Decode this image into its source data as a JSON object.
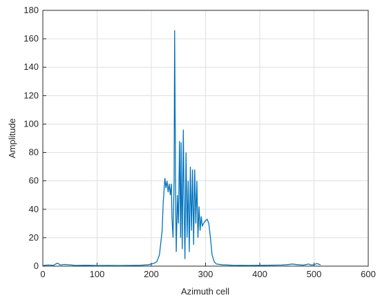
{
  "chart_data": {
    "type": "line",
    "xlabel": "Azimuth cell",
    "ylabel": "Amplitude",
    "xlim": [
      0,
      600
    ],
    "ylim": [
      0,
      180
    ],
    "xticks": [
      0,
      100,
      200,
      300,
      400,
      500,
      600
    ],
    "yticks": [
      0,
      20,
      40,
      60,
      80,
      100,
      120,
      140,
      160,
      180
    ],
    "grid": true,
    "series": [
      {
        "color": "#0072bd",
        "x": [
          1,
          10,
          20,
          25,
          28,
          32,
          40,
          50,
          60,
          80,
          100,
          120,
          140,
          160,
          180,
          195,
          205,
          210,
          215,
          220,
          222,
          225,
          227,
          229,
          231,
          233,
          235,
          237,
          238,
          240,
          242,
          243,
          245,
          246,
          248,
          250,
          252,
          254,
          255,
          257,
          259,
          261,
          262,
          264,
          266,
          268,
          270,
          272,
          274,
          276,
          278,
          280,
          282,
          284,
          286,
          288,
          290,
          292,
          294,
          296,
          300,
          303,
          306,
          309,
          312,
          316,
          320,
          330,
          350,
          380,
          410,
          440,
          450,
          460,
          470,
          480,
          490,
          495,
          500,
          505,
          512
        ],
        "values": [
          0.5,
          0.8,
          0.6,
          1.8,
          2,
          0.8,
          1.2,
          0.9,
          0.5,
          0.6,
          0.4,
          0.5,
          0.4,
          0.5,
          0.6,
          1,
          2,
          3,
          8,
          25,
          45,
          62,
          55,
          60,
          52,
          58,
          50,
          58,
          35,
          20,
          60,
          166,
          40,
          10,
          50,
          30,
          88,
          20,
          87,
          12,
          96,
          30,
          5,
          80,
          20,
          60,
          10,
          70,
          25,
          68,
          15,
          68,
          30,
          60,
          20,
          42,
          25,
          35,
          28,
          30,
          32,
          33,
          30,
          20,
          8,
          3,
          1.5,
          1,
          0.6,
          0.5,
          0.6,
          0.8,
          1,
          1.5,
          1,
          0.7,
          1.5,
          0.8,
          1,
          1.8,
          1
        ]
      }
    ]
  }
}
